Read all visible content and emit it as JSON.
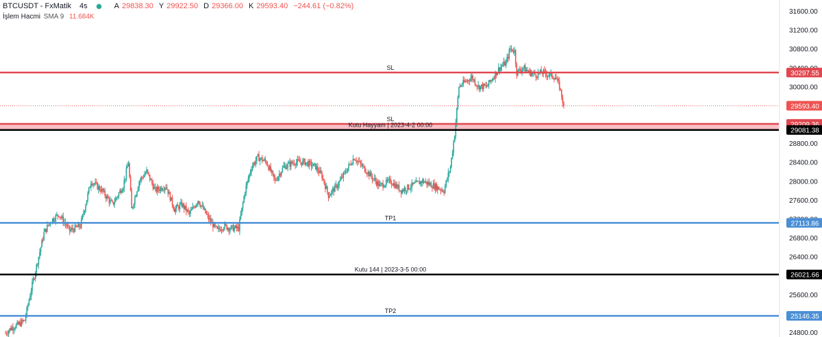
{
  "header": {
    "symbol": "BTCUSDT - FxMatik",
    "timeframe": "4s",
    "ohlc": {
      "open_label": "A",
      "open": "29838.30",
      "high_label": "Y",
      "high": "29922.50",
      "low_label": "D",
      "low": "29366.00",
      "close_label": "K",
      "close": "29593.40",
      "change": "−244.61 (−0.82%)"
    },
    "volume_label": "İşlem Hacmi",
    "volume_indicator": "SMA 9",
    "volume_value": "11.684K"
  },
  "colors": {
    "up": "#26a69a",
    "down": "#ef5350",
    "sl_line": "#e0474f",
    "tp_line": "#4a8fd6",
    "box_line": "#000000",
    "zone_fill": "#f7b7bd"
  },
  "chart_data": {
    "type": "candlestick",
    "y_axis": {
      "min": 24700,
      "max": 31700,
      "ticks": [
        "31600.00",
        "31200.00",
        "30800.00",
        "30400.00",
        "30000.00",
        "28800.00",
        "28400.00",
        "28000.00",
        "27600.00",
        "27200.00",
        "26800.00",
        "26400.00",
        "25600.00",
        "24800.00"
      ]
    },
    "levels": [
      {
        "label": "SL",
        "price": 30297.55,
        "price_label": "30297.55",
        "kind": "sl"
      },
      {
        "label": "SL",
        "price": 29209.36,
        "price_label": "29209.36",
        "kind": "sl"
      },
      {
        "label": "Kutu Hayyam | 2023-4-2 00:00",
        "price": 29081.38,
        "price_label": "29081.38",
        "kind": "box"
      },
      {
        "label": "TP1",
        "price": 27113.86,
        "price_label": "27113.86",
        "kind": "tp"
      },
      {
        "label": "Kutu 144 | 2023-3-5 00:00",
        "price": 26021.66,
        "price_label": "26021.66",
        "kind": "box"
      },
      {
        "label": "TP2",
        "price": 25146.35,
        "price_label": "25146.35",
        "kind": "tp"
      }
    ],
    "last_price": {
      "price": 29593.4,
      "label": "29593.40"
    },
    "anchors": [
      [
        0,
        24780
      ],
      [
        6,
        24900
      ],
      [
        12,
        24960
      ],
      [
        18,
        25050
      ],
      [
        24,
        25700
      ],
      [
        30,
        26300
      ],
      [
        36,
        26900
      ],
      [
        42,
        27150
      ],
      [
        50,
        27300
      ],
      [
        60,
        26950
      ],
      [
        70,
        27050
      ],
      [
        80,
        28000
      ],
      [
        90,
        27800
      ],
      [
        100,
        27500
      ],
      [
        110,
        27900
      ],
      [
        115,
        28400
      ],
      [
        118,
        27400
      ],
      [
        125,
        28000
      ],
      [
        132,
        28200
      ],
      [
        140,
        27800
      ],
      [
        150,
        27900
      ],
      [
        158,
        27400
      ],
      [
        165,
        27500
      ],
      [
        172,
        27300
      ],
      [
        180,
        27600
      ],
      [
        190,
        27200
      ],
      [
        198,
        26950
      ],
      [
        204,
        27050
      ],
      [
        210,
        27000
      ],
      [
        218,
        27000
      ],
      [
        224,
        27800
      ],
      [
        230,
        28300
      ],
      [
        236,
        28500
      ],
      [
        244,
        28400
      ],
      [
        252,
        28000
      ],
      [
        260,
        28300
      ],
      [
        270,
        28400
      ],
      [
        280,
        28400
      ],
      [
        290,
        28300
      ],
      [
        296,
        28100
      ],
      [
        302,
        27700
      ],
      [
        310,
        27900
      ],
      [
        318,
        28200
      ],
      [
        326,
        28500
      ],
      [
        334,
        28300
      ],
      [
        342,
        28100
      ],
      [
        350,
        27900
      ],
      [
        360,
        28000
      ],
      [
        370,
        27800
      ],
      [
        380,
        27900
      ],
      [
        390,
        28000
      ],
      [
        400,
        27900
      ],
      [
        410,
        27800
      ],
      [
        416,
        28300
      ],
      [
        420,
        29000
      ],
      [
        424,
        30000
      ],
      [
        430,
        30100
      ],
      [
        436,
        30200
      ],
      [
        442,
        30000
      ],
      [
        450,
        30000
      ],
      [
        456,
        30200
      ],
      [
        462,
        30400
      ],
      [
        468,
        30500
      ],
      [
        472,
        30800
      ],
      [
        476,
        30750
      ],
      [
        478,
        30300
      ],
      [
        484,
        30400
      ],
      [
        490,
        30300
      ],
      [
        496,
        30250
      ],
      [
        502,
        30300
      ],
      [
        508,
        30250
      ],
      [
        514,
        30200
      ],
      [
        518,
        30000
      ],
      [
        522,
        29600
      ]
    ]
  }
}
